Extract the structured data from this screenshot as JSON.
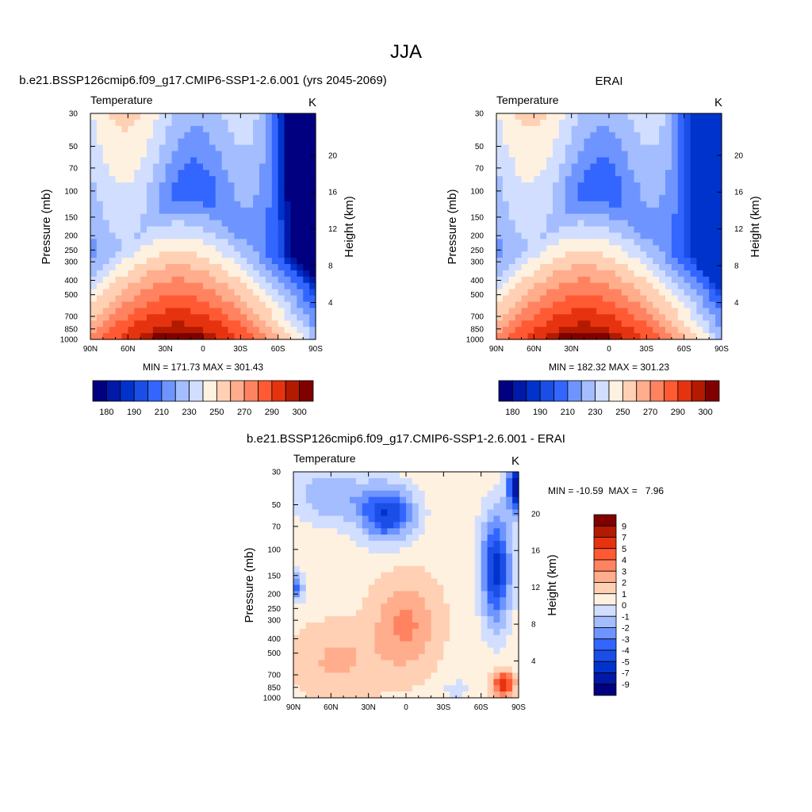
{
  "figure": {
    "title": "JJA",
    "colors": {
      "abs_palette": [
        "#000080",
        "#0019a8",
        "#0033cc",
        "#1a4ee6",
        "#3366ff",
        "#6e95ff",
        "#a3bdff",
        "#d1deff",
        "#fff1e0",
        "#ffd0b3",
        "#ffad8c",
        "#ff8360",
        "#ff5a33",
        "#e6330f",
        "#b31a00",
        "#800000"
      ],
      "diff_palette": [
        "#000080",
        "#0019a8",
        "#0033cc",
        "#1a4ee6",
        "#3366ff",
        "#6e95ff",
        "#a3bdff",
        "#d1deff",
        "#fff1e0",
        "#ffd0b3",
        "#ffad8c",
        "#ff8360",
        "#ff5a33",
        "#e6330f",
        "#b31a00",
        "#800000"
      ]
    }
  },
  "chart_data": [
    {
      "type": "heatmap",
      "title": "b.e21.BSSP126cmip6.f09_g17.CMIP6-SSP1-2.6.001 (yrs 2045-2069)",
      "variable": "Temperature",
      "units": "K",
      "xlabel": "",
      "ylabel": "Pressure (mb)",
      "ylabel_right": "Height (km)",
      "x_ticks": [
        "90N",
        "60N",
        "30N",
        "0",
        "30S",
        "60S",
        "90S"
      ],
      "y_ticks": [
        "30",
        "50",
        "70",
        "100",
        "150",
        "200",
        "250",
        "300",
        "400",
        "500",
        "700",
        "850",
        "1000"
      ],
      "y_ticks_right": [
        "20",
        "16",
        "12",
        "8",
        "4"
      ],
      "stats": "MIN = 171.73  MAX = 301.43",
      "colorbar_labels": [
        "180",
        "190",
        "210",
        "230",
        "250",
        "270",
        "290",
        "300"
      ],
      "field": {
        "scale": "abs",
        "lat_peak": 20,
        "trop_min": 195,
        "strat_core": 186,
        "polar_min": 172,
        "surf_max": 301.4
      }
    },
    {
      "type": "heatmap",
      "title": "ERAI",
      "variable": "Temperature",
      "units": "K",
      "xlabel": "",
      "ylabel": "Pressure (mb)",
      "ylabel_right": "Height (km)",
      "x_ticks": [
        "90N",
        "60N",
        "30N",
        "0",
        "30S",
        "60S",
        "90S"
      ],
      "y_ticks": [
        "30",
        "50",
        "70",
        "100",
        "150",
        "200",
        "250",
        "300",
        "400",
        "500",
        "700",
        "850",
        "1000"
      ],
      "y_ticks_right": [
        "20",
        "16",
        "12",
        "8",
        "4"
      ],
      "stats": "MIN = 182.32  MAX = 301.23",
      "colorbar_labels": [
        "180",
        "190",
        "210",
        "230",
        "250",
        "270",
        "290",
        "300"
      ],
      "field": {
        "scale": "abs",
        "lat_peak": 20,
        "trop_min": 197,
        "strat_core": 190,
        "polar_min": 182,
        "surf_max": 301.2
      }
    },
    {
      "type": "heatmap",
      "title": "b.e21.BSSP126cmip6.f09_g17.CMIP6-SSP1-2.6.001 - ERAI",
      "variable": "Temperature",
      "units": "K",
      "xlabel": "",
      "ylabel": "Pressure (mb)",
      "ylabel_right": "Height (km)",
      "x_ticks": [
        "90N",
        "60N",
        "30N",
        "0",
        "30S",
        "60S",
        "90S"
      ],
      "y_ticks": [
        "30",
        "50",
        "70",
        "100",
        "150",
        "200",
        "250",
        "300",
        "400",
        "500",
        "700",
        "850",
        "1000"
      ],
      "y_ticks_right": [
        "20",
        "16",
        "12",
        "8",
        "4"
      ],
      "stats": "MIN = -10.59  MAX =   7.96",
      "colorbar_labels": [
        "9",
        "7",
        "5",
        "4",
        "3",
        "2",
        "1",
        "0",
        "-1",
        "-2",
        "-3",
        "-4",
        "-5",
        "-7",
        "-9"
      ],
      "field": {
        "scale": "diff",
        "min": -10.59,
        "max": 7.96
      }
    }
  ]
}
